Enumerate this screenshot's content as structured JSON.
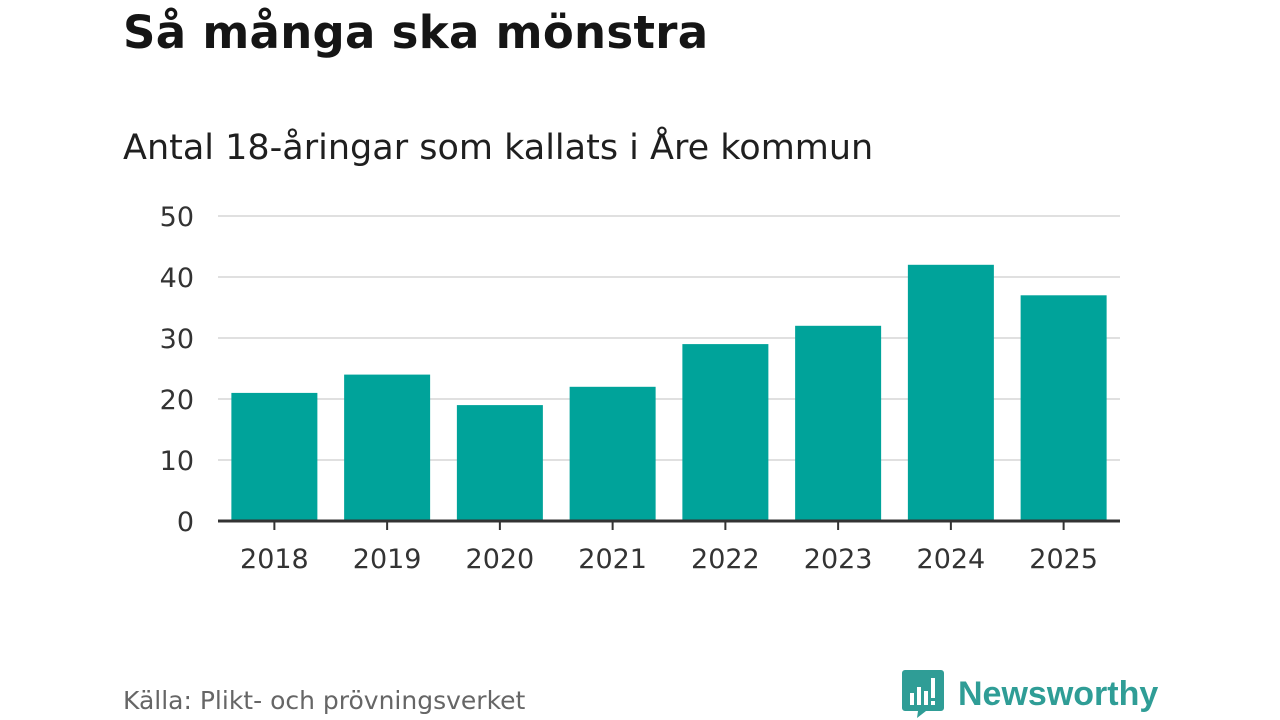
{
  "title": "Så många ska mönstra",
  "subtitle": "Antal 18-åringar som kallats i Åre kommun",
  "source": "Källa: Plikt- och prövningsverket",
  "brand": {
    "name": "Newsworthy",
    "color": "#2f9d96"
  },
  "chart_data": {
    "type": "bar",
    "title": "Så många ska mönstra",
    "subtitle": "Antal 18-åringar som kallats i Åre kommun",
    "categories": [
      "2018",
      "2019",
      "2020",
      "2021",
      "2022",
      "2023",
      "2024",
      "2025"
    ],
    "values": [
      21,
      24,
      19,
      22,
      29,
      32,
      42,
      37
    ],
    "ylim": [
      0,
      50
    ],
    "yticks": [
      0,
      10,
      20,
      30,
      40,
      50
    ],
    "grid": true,
    "legend": "none",
    "bar_color": "#00a39a",
    "grid_color": "#e0e0e0",
    "axis_color": "#333333"
  }
}
